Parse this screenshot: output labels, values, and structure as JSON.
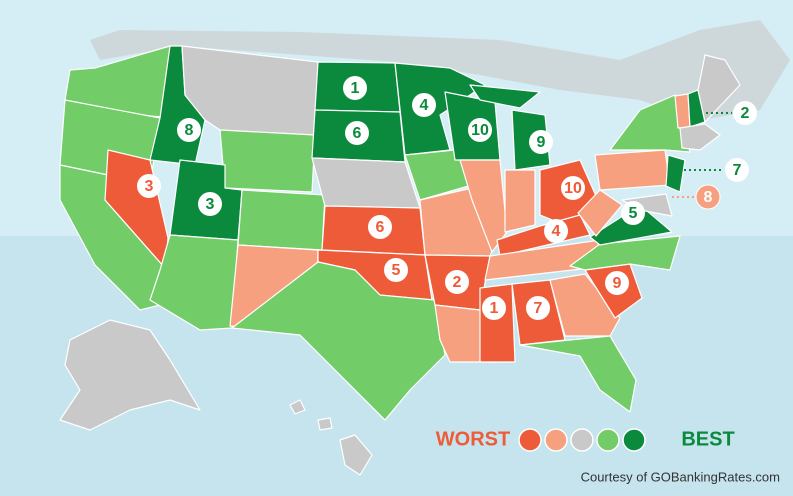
{
  "markers": [
    {
      "label": "1",
      "color": "#0b8a3e"
    },
    {
      "label": "6",
      "color": "#0b8a3e"
    },
    {
      "label": "4",
      "color": "#0b8a3e"
    },
    {
      "label": "10",
      "color": "#0b8a3e"
    },
    {
      "label": "9",
      "color": "#0b8a3e"
    },
    {
      "label": "8",
      "color": "#0b8a3e"
    },
    {
      "label": "3",
      "color": "#0b8a3e"
    },
    {
      "label": "5",
      "color": "#0b8a3e"
    },
    {
      "label": "2",
      "color": "#0b8a3e"
    },
    {
      "label": "7",
      "color": "#0b8a3e"
    },
    {
      "label": "3",
      "color": "#ee5b38"
    },
    {
      "label": "6",
      "color": "#ee5b38"
    },
    {
      "label": "5",
      "color": "#ee5b38"
    },
    {
      "label": "2",
      "color": "#ee5b38"
    },
    {
      "label": "1",
      "color": "#ee5b38"
    },
    {
      "label": "7",
      "color": "#ee5b38"
    },
    {
      "label": "4",
      "color": "#ee5b38"
    },
    {
      "label": "10",
      "color": "#ee5b38"
    },
    {
      "label": "9",
      "color": "#ee5b38"
    },
    {
      "label": "8",
      "color": "#f7a07f"
    }
  ],
  "legend": {
    "worst": "WORST",
    "best": "BEST",
    "colors": [
      "#ee5b38",
      "#f7a07f",
      "#c9c9c9",
      "#72cc68",
      "#0b8a3e"
    ]
  },
  "credit": "Courtesy of GOBankingRates.com"
}
